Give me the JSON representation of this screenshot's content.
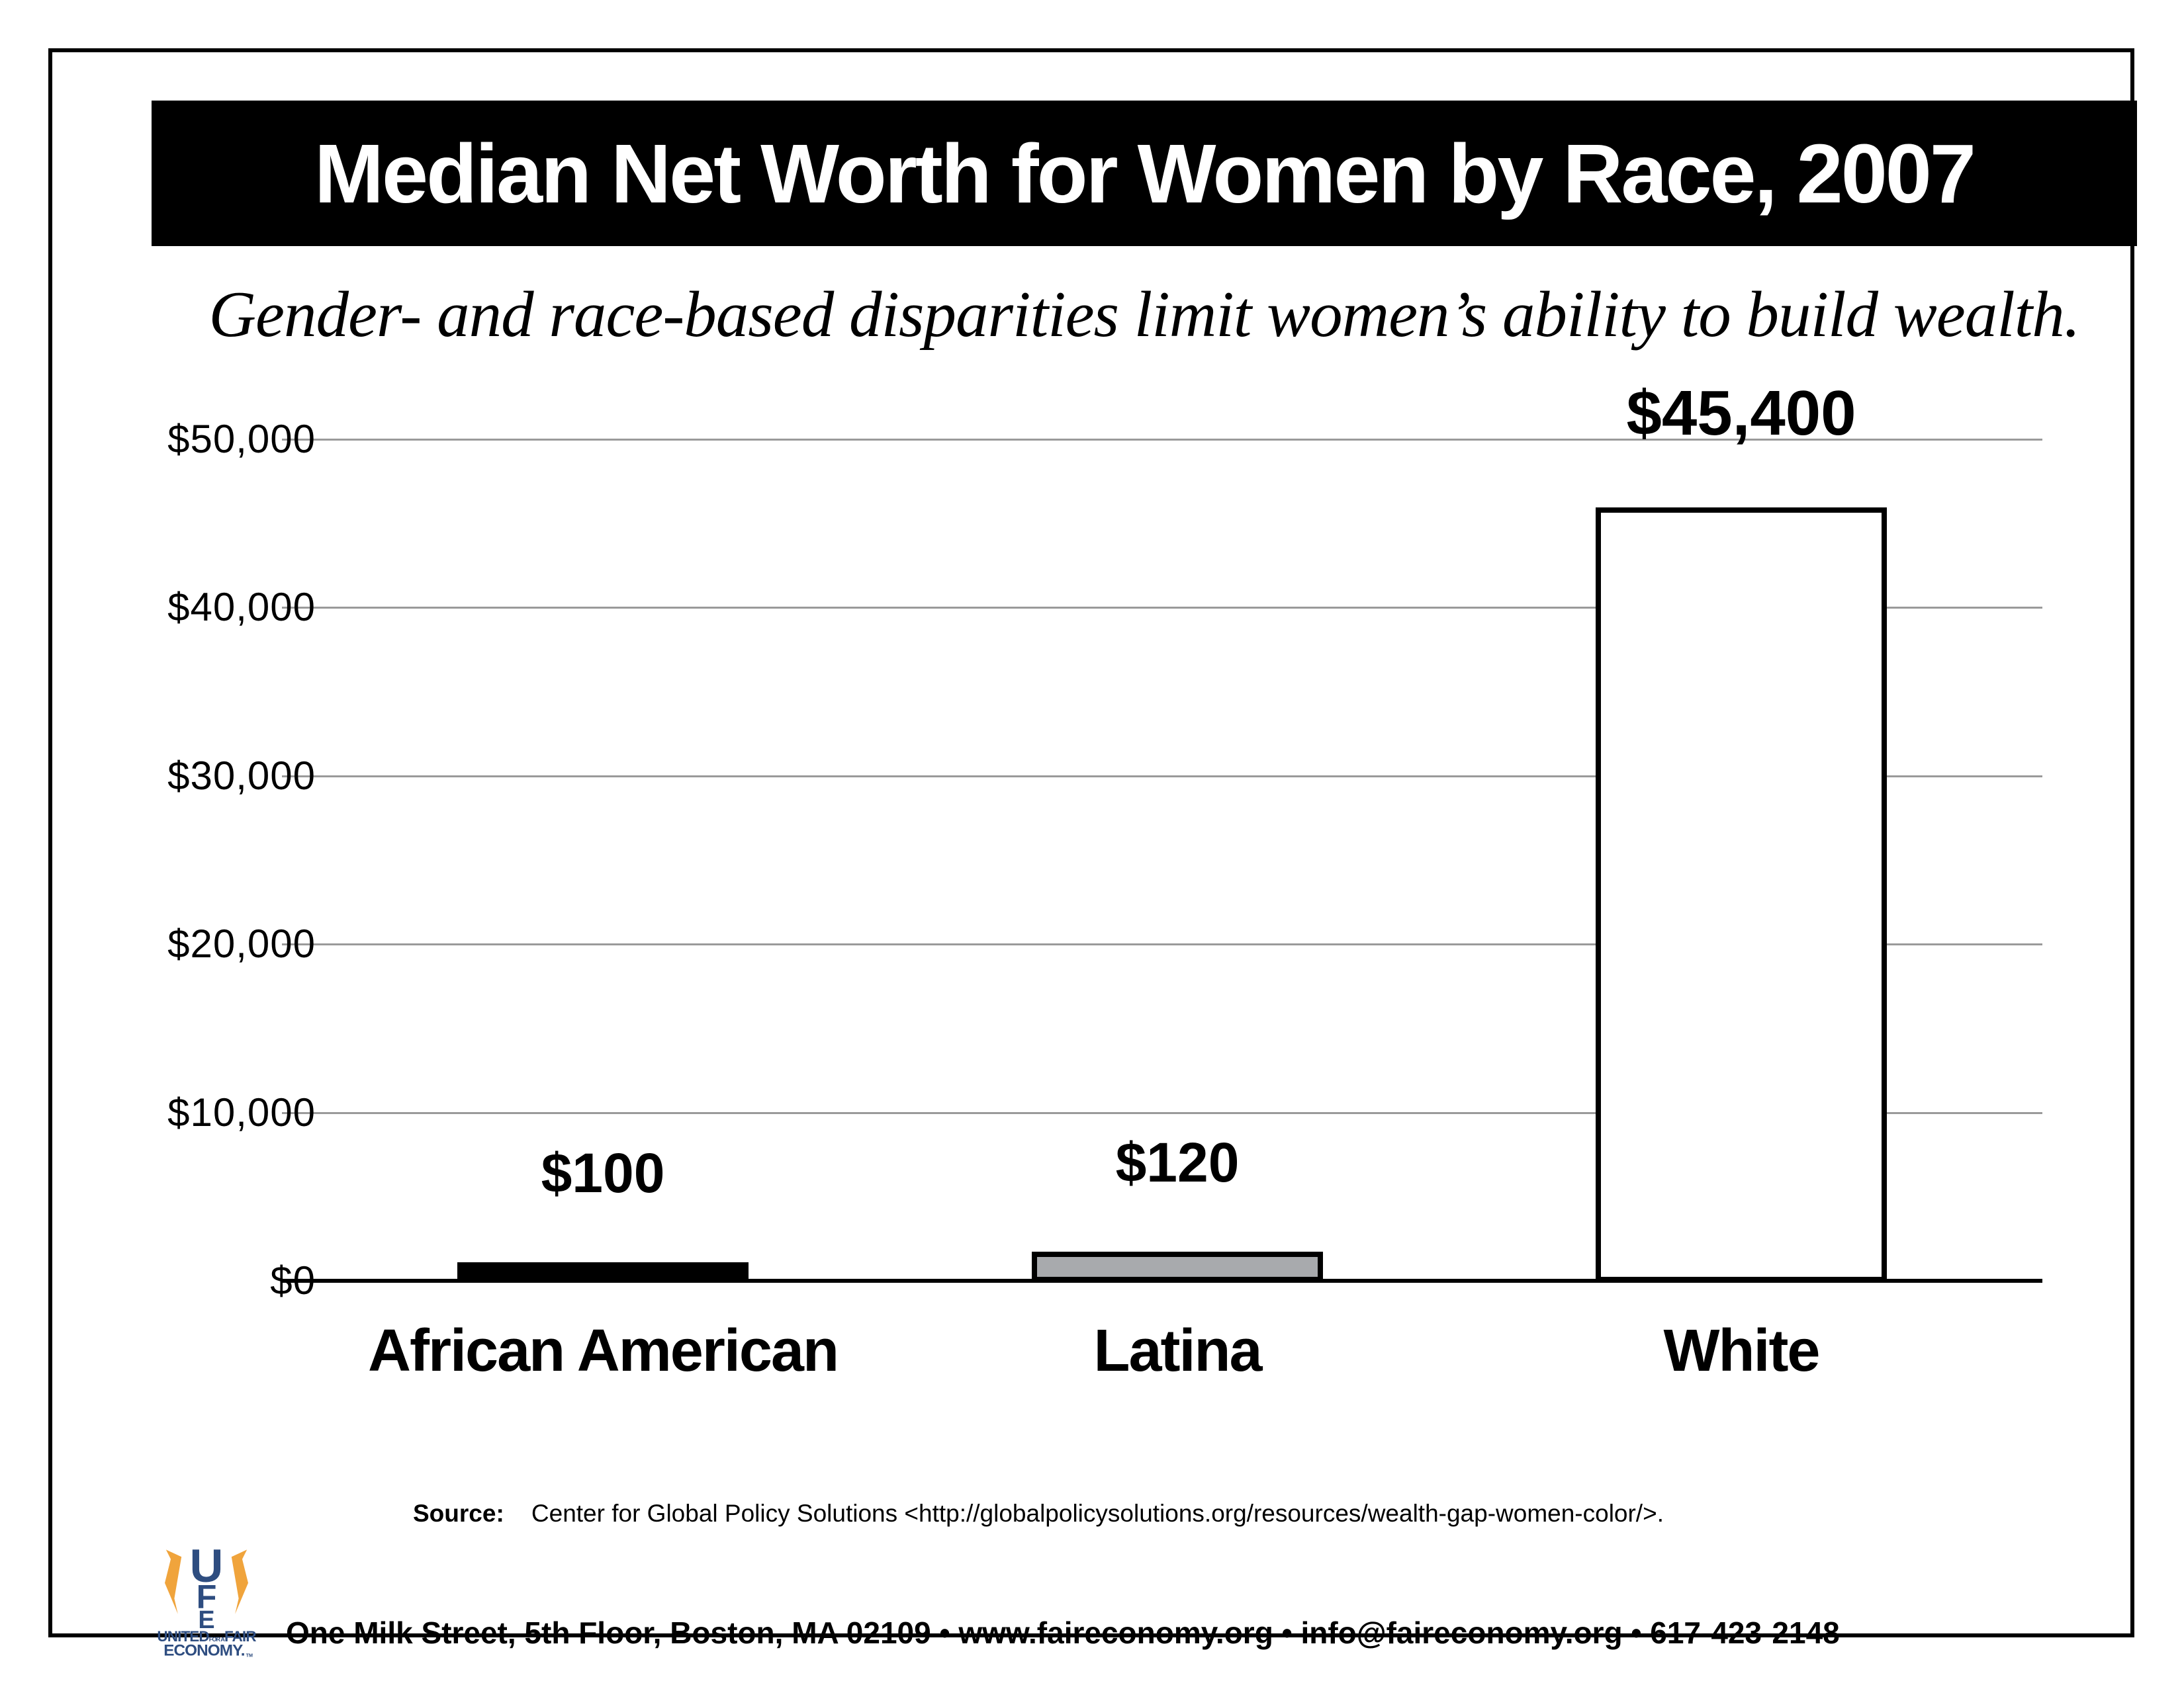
{
  "title": "Median Net Worth for Women by Race, 2007",
  "subtitle": "Gender- and race-based disparities limit women’s ability to build wealth.",
  "chart_data": {
    "type": "bar",
    "categories": [
      "African American",
      "Latina",
      "White"
    ],
    "values": [
      100,
      120,
      45400
    ],
    "value_labels": [
      "$100",
      "$120",
      "$45,400"
    ],
    "y_ticks": [
      {
        "label": "$50,000",
        "value": 50000
      },
      {
        "label": "$40,000",
        "value": 40000
      },
      {
        "label": "$30,000",
        "value": 30000
      },
      {
        "label": "$20,000",
        "value": 20000
      },
      {
        "label": "$10,000",
        "value": 10000
      },
      {
        "label": "$0",
        "value": 0
      }
    ],
    "ylim": [
      0,
      50000
    ],
    "grid": true,
    "legend": "none",
    "bar_fill_colors": [
      "#000000",
      "#a8aaad",
      "#ffffff"
    ],
    "bar_border_color": "#000000",
    "grid_color": "#9a9a9a",
    "axis_color": "#000000",
    "title": "Median Net Worth for Women by Race, 2007",
    "xlabel": "",
    "ylabel": ""
  },
  "source": {
    "label": "Source",
    "colon": ":",
    "text": "Center for Global Policy Solutions <http://globalpolicysolutions.org/resources/wealth-gap-women-color/>."
  },
  "footer": {
    "address_line": "One Milk Street, 5th Floor, Boston, MA 02109  •  www.faireconomy.org  •  info@faireconomy.org  •  617-423-2148",
    "logo": {
      "monogram_u": "U",
      "monogram_f": "F",
      "monogram_e": "E",
      "line1_a": "UNITED",
      "line1_small": "FOR A",
      "line1_b": "FAIR",
      "line2": "ECONOMY.",
      "tm": "TM",
      "navy": "#2e4d80",
      "gold": "#f0a43c"
    }
  },
  "colors": {
    "banner_bg": "#000000",
    "banner_text": "#ffffff",
    "page_bg": "#ffffff"
  }
}
